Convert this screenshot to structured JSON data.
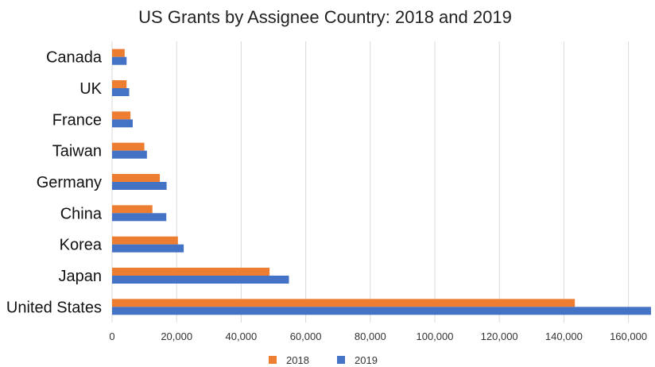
{
  "chart_data": {
    "type": "bar",
    "orientation": "horizontal",
    "title": "US Grants by Assignee Country: 2018 and 2019",
    "xlabel": "",
    "ylabel": "",
    "categories": [
      "Canada",
      "UK",
      "France",
      "Taiwan",
      "Germany",
      "China",
      "Korea",
      "Japan",
      "United States"
    ],
    "series": [
      {
        "name": "2018",
        "color": "#ED7D31",
        "values": [
          3900,
          4500,
          5700,
          10000,
          14800,
          12500,
          20400,
          48800,
          143400
        ]
      },
      {
        "name": "2019",
        "color": "#4472C4",
        "values": [
          4500,
          5300,
          6400,
          10800,
          16900,
          16800,
          22200,
          54800,
          167000
        ]
      }
    ],
    "xlim": [
      0,
      167000
    ],
    "xticks": [
      0,
      20000,
      40000,
      60000,
      80000,
      100000,
      120000,
      140000,
      160000
    ],
    "xtick_labels": [
      "0",
      "20,000",
      "40,000",
      "60,000",
      "80,000",
      "100,000",
      "120,000",
      "140,000",
      "160,000"
    ],
    "grid": true,
    "legend_position": "bottom"
  }
}
